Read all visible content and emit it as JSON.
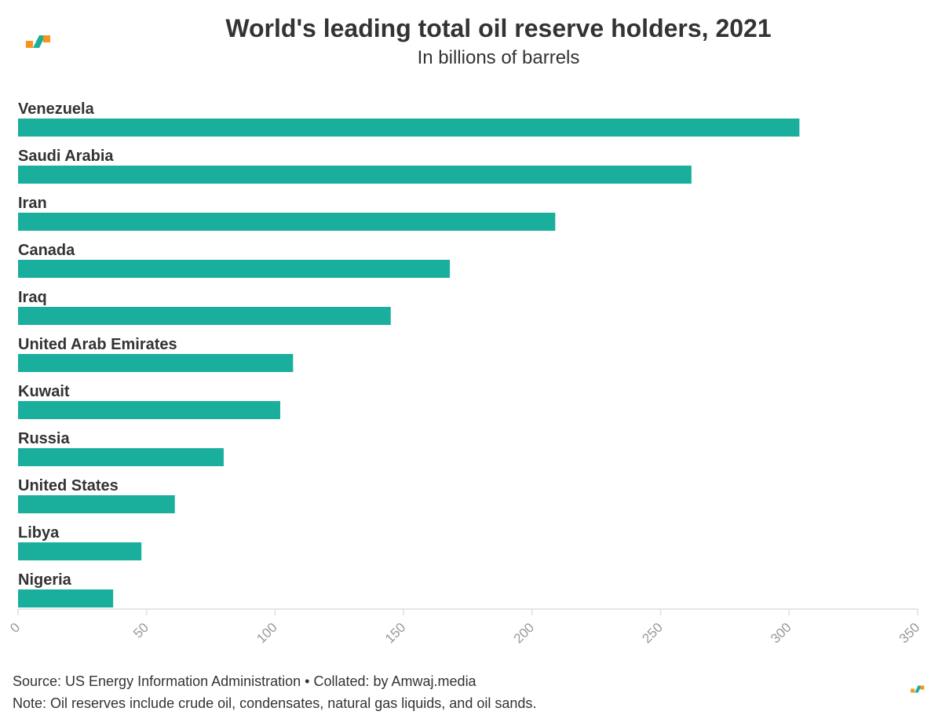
{
  "header": {
    "title": "World's leading total oil reserve holders, 2021",
    "subtitle": "In billions of barrels"
  },
  "footer": {
    "source": "Source: US Energy Information Administration • Collated: by Amwaj.media",
    "note": "Note: Oil reserves include crude oil, condensates, natural gas liquids, and oil sands."
  },
  "colors": {
    "bar": "#1aaf9d",
    "axis": "#e6e6e6",
    "tick_label": "#999999",
    "logo_orange": "#f7941d",
    "logo_green": "#1aaf9d"
  },
  "icons": {
    "logo": "amwaj-logo-icon"
  },
  "chart_data": {
    "type": "bar",
    "orientation": "horizontal",
    "title": "World's leading total oil reserve holders, 2021",
    "subtitle": "In billions of barrels",
    "xlabel": "",
    "ylabel": "",
    "categories": [
      "Venezuela",
      "Saudi Arabia",
      "Iran",
      "Canada",
      "Iraq",
      "United Arab Emirates",
      "Kuwait",
      "Russia",
      "United States",
      "Libya",
      "Nigeria"
    ],
    "values": [
      304,
      262,
      209,
      168,
      145,
      107,
      102,
      80,
      61,
      48,
      37
    ],
    "xlim": [
      0,
      350
    ],
    "ticks": [
      0,
      50,
      100,
      150,
      200,
      250,
      300,
      350
    ],
    "grid": false,
    "legend": "none"
  }
}
